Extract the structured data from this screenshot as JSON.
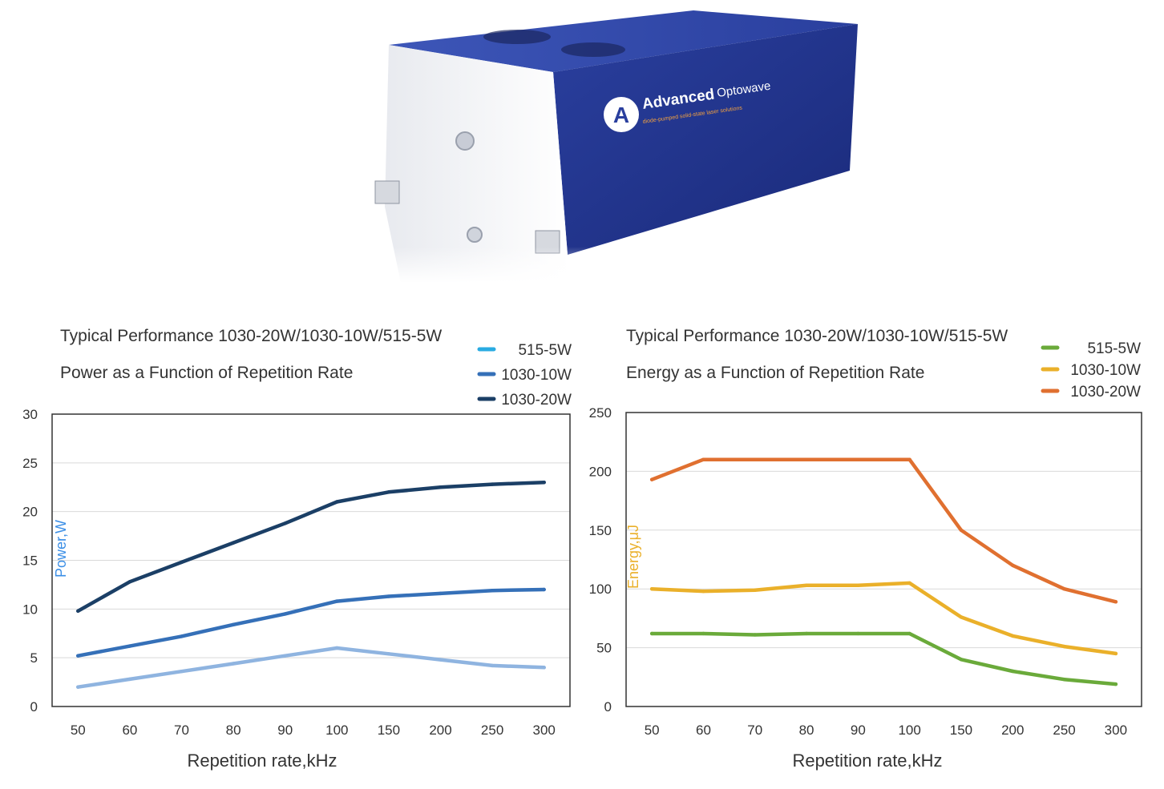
{
  "product_image": {
    "brand_word1": "Advanced",
    "brand_word2": "Optowave",
    "tagline": "diode-pumped solid-state laser solutions"
  },
  "chart_data": [
    {
      "type": "line",
      "title": "Typical Performance 1030-20W/1030-10W/515-5W",
      "subtitle": "Power as a Function of Repetition Rate",
      "xlabel": "Repetition rate,kHz",
      "ylabel": "Power,W",
      "categories": [
        "50",
        "60",
        "70",
        "80",
        "90",
        "100",
        "150",
        "200",
        "250",
        "300"
      ],
      "ylim": [
        0,
        30
      ],
      "yticks": [
        0,
        5,
        10,
        15,
        20,
        25,
        30
      ],
      "grid": true,
      "legend_position": "top-right",
      "series": [
        {
          "name": "515-5W",
          "color": "#8fb4e0",
          "legend_color": "#29abe2",
          "values": [
            2,
            2.8,
            3.6,
            4.4,
            5.2,
            6,
            5.4,
            4.8,
            4.2,
            4
          ]
        },
        {
          "name": "1030-10W",
          "color": "#3570b8",
          "legend_color": "#3570b8",
          "values": [
            5.2,
            6.2,
            7.2,
            8.4,
            9.5,
            10.8,
            11.3,
            11.6,
            11.9,
            12
          ]
        },
        {
          "name": "1030-20W",
          "color": "#1b3f66",
          "legend_color": "#1b3f66",
          "values": [
            9.8,
            12.8,
            14.8,
            16.8,
            18.8,
            21,
            22,
            22.5,
            22.8,
            23
          ]
        }
      ],
      "ylabel_color": "#3a8ee6"
    },
    {
      "type": "line",
      "title": "Typical Performance 1030-20W/1030-10W/515-5W",
      "subtitle": "Energy as a Function of Repetition Rate",
      "xlabel": "Repetition rate,kHz",
      "ylabel": "Energy,μJ",
      "categories": [
        "50",
        "60",
        "70",
        "80",
        "90",
        "100",
        "150",
        "200",
        "250",
        "300"
      ],
      "ylim": [
        0,
        250
      ],
      "yticks": [
        0,
        50,
        100,
        150,
        200,
        250
      ],
      "grid": true,
      "legend_position": "top-right",
      "series": [
        {
          "name": "515-5W",
          "color": "#6aaa3a",
          "legend_color": "#6aaa3a",
          "values": [
            62,
            62,
            61,
            62,
            62,
            62,
            40,
            30,
            23,
            19
          ]
        },
        {
          "name": "1030-10W",
          "color": "#eab02a",
          "legend_color": "#eab02a",
          "values": [
            100,
            98,
            99,
            103,
            103,
            105,
            76,
            60,
            51,
            45
          ]
        },
        {
          "name": "1030-20W",
          "color": "#e07030",
          "legend_color": "#e07030",
          "values": [
            193,
            210,
            210,
            210,
            210,
            210,
            150,
            120,
            100,
            89
          ]
        }
      ],
      "ylabel_color": "#eab02a"
    }
  ]
}
